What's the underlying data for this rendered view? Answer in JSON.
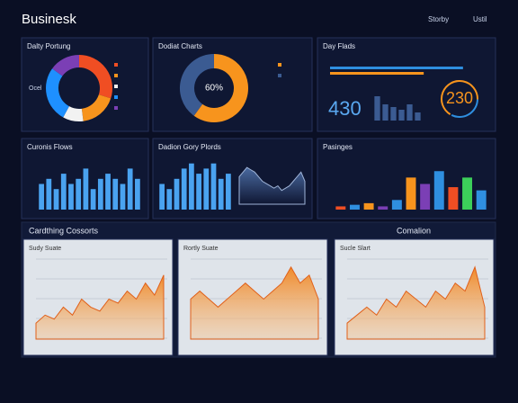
{
  "header": {
    "title": "Businesk",
    "links": [
      "Storby",
      "Ustil"
    ]
  },
  "section": {
    "title": "Cardthing Cossorts",
    "right_title": "Comalion"
  },
  "panels": [
    {
      "title": "Dalty Portung",
      "type": "donut",
      "values": [
        30,
        18,
        10,
        27,
        15
      ],
      "colors": [
        "#f04e23",
        "#f7941d",
        "#f2f2f2",
        "#1e90ff",
        "#7b3fb5"
      ],
      "label": "Ocel"
    },
    {
      "title": "Dodiat Charts",
      "type": "donut",
      "values": [
        60,
        40
      ],
      "colors": [
        "#f7941d",
        "#3b5b92"
      ],
      "center_label": "60%"
    },
    {
      "title": "Day Flads",
      "type": "kpi",
      "hbars": [
        88,
        62
      ],
      "hbar_colors": [
        "#2f8fe0",
        "#f7941d"
      ],
      "hlim": [
        0,
        100
      ],
      "big_number": "430",
      "values": [
        9,
        6,
        5,
        4,
        6,
        3
      ],
      "ylim": [
        0,
        10
      ],
      "color": "#3b5b92",
      "gauge": "230"
    },
    {
      "title": "Curonis Flows",
      "type": "bar",
      "values": [
        5,
        6,
        4,
        7,
        5,
        6,
        8,
        4,
        6,
        7,
        6,
        5,
        8,
        6
      ],
      "ylim": [
        0,
        10
      ],
      "color": "#4aa3f0"
    },
    {
      "title": "Dadion Gory Plords",
      "type": "bar-area",
      "values": [
        5,
        4,
        6,
        8,
        9,
        7,
        8,
        9,
        6,
        7
      ],
      "ylim": [
        0,
        10
      ],
      "color": "#4aa3f0",
      "area": [
        6,
        7,
        8,
        7.5,
        7,
        6,
        5,
        4.5,
        4,
        3.5,
        4,
        3,
        3.5,
        4,
        5,
        6,
        7,
        5
      ],
      "area_ylim": [
        0,
        10
      ]
    },
    {
      "title": "Pasinges",
      "type": "bar",
      "values": [
        1,
        1.5,
        2,
        1,
        3,
        10,
        8,
        12,
        7,
        10,
        6
      ],
      "ylim": [
        0,
        16
      ],
      "colors": [
        "#f04e23",
        "#2f8fe0",
        "#f7941d",
        "#7b3fb5",
        "#2f8fe0",
        "#f7941d",
        "#7b3fb5",
        "#2f8fe0",
        "#f04e23",
        "#3ccf5a",
        "#2f8fe0"
      ]
    },
    {
      "title": "Sudy Suate",
      "type": "area",
      "values": [
        2,
        3,
        2.5,
        4,
        3,
        5,
        4,
        3.5,
        5,
        4.5,
        6,
        5,
        7,
        5.5,
        8
      ],
      "ylim": [
        0,
        10
      ]
    },
    {
      "title": "Rortly Suate",
      "type": "area",
      "values": [
        5,
        6,
        5,
        4,
        5,
        6,
        7,
        6,
        5,
        6,
        7,
        9,
        7,
        8,
        5
      ],
      "ylim": [
        0,
        10
      ]
    },
    {
      "title": "Sucle Slart",
      "type": "area",
      "values": [
        2,
        3,
        4,
        3,
        5,
        4,
        6,
        5,
        4,
        6,
        5,
        7,
        6,
        9,
        4
      ],
      "ylim": [
        0,
        10
      ]
    }
  ]
}
